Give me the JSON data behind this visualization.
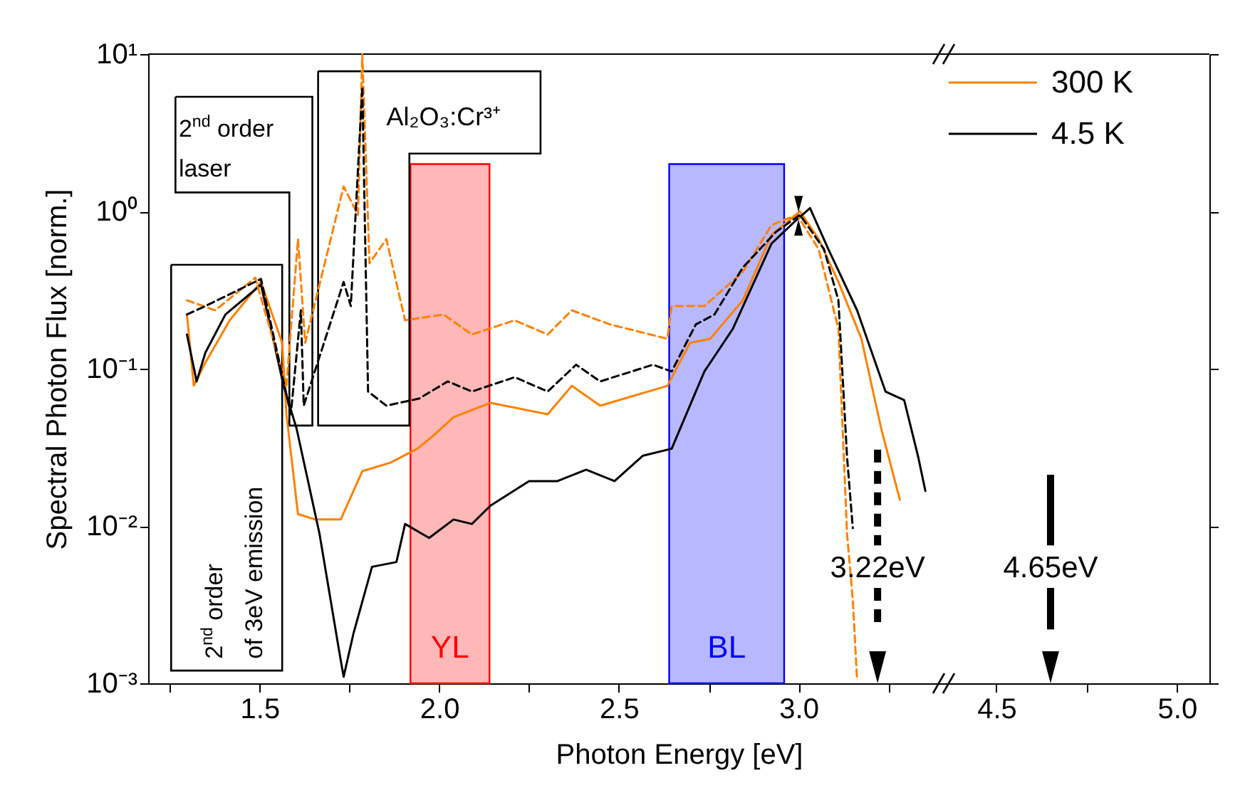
{
  "chart_data": [
    {
      "type": "line",
      "xlabel": "Photon Energy [eV]",
      "ylabel": "Spectral Photon Flux [norm.]",
      "log": true,
      "legend": "top right",
      "xlim": [
        1.19,
        3.41
      ],
      "ylim": [
        0.001,
        10
      ],
      "xticks": [
        {
          "value": 1.25,
          "label": null
        },
        1.5,
        {
          "value": 1.75,
          "label": null
        },
        {
          "value": 2,
          "label": "2.0"
        },
        {
          "value": 2.25,
          "label": null
        },
        2.5,
        {
          "value": 2.75,
          "label": null
        },
        {
          "value": 3,
          "label": "3.0"
        },
        {
          "value": 3.25,
          "label": null
        }
      ],
      "yticks": [
        {
          "value": 0.001,
          "label": "10⁻³"
        },
        {
          "value": 0.01,
          "label": "10⁻²"
        },
        {
          "value": 0.1,
          "label": "10⁻¹"
        },
        {
          "value": 1,
          "label": "10⁰"
        },
        {
          "value": 10,
          "label": "10¹"
        }
      ],
      "series": [
        {
          "name": "300 K",
          "color": "#ff8000",
          "line_style": "solid",
          "x": [
            1.298,
            1.317,
            1.349,
            1.417,
            1.504,
            1.563,
            1.575,
            1.607,
            1.655,
            1.726,
            1.786,
            1.865,
            1.94,
            1.984,
            2.04,
            2.143,
            2.302,
            2.369,
            2.448,
            2.635,
            2.698,
            2.754,
            2.845,
            2.925,
            3.004,
            3.056,
            3.111,
            3.175,
            3.23,
            3.282
          ],
          "values": [
            0.221,
            0.078,
            0.109,
            0.203,
            0.356,
            0.146,
            0.051,
            0.0119,
            0.011,
            0.011,
            0.0223,
            0.0253,
            0.0311,
            0.0376,
            0.0492,
            0.0607,
            0.0513,
            0.0778,
            0.0582,
            0.0778,
            0.146,
            0.155,
            0.272,
            0.71,
            1.0,
            0.667,
            0.356,
            0.155,
            0.0417,
            0.0147
          ]
        },
        {
          "name": "4.5 K",
          "color": "#000000",
          "line_style": "solid",
          "x": [
            1.298,
            1.325,
            1.349,
            1.405,
            1.504,
            1.567,
            1.603,
            1.667,
            1.722,
            1.734,
            1.762,
            1.813,
            1.881,
            1.905,
            1.972,
            2.04,
            2.091,
            2.143,
            2.25,
            2.329,
            2.409,
            2.488,
            2.567,
            2.647,
            2.687,
            2.738,
            2.817,
            2.925,
            2.992,
            3.032,
            3.083,
            3.163,
            3.242,
            3.294,
            3.333,
            3.353
          ],
          "values": [
            0.165,
            0.083,
            0.126,
            0.221,
            0.342,
            0.078,
            0.0417,
            0.0089,
            0.00158,
            0.0011,
            0.0021,
            0.0055,
            0.0059,
            0.0103,
            0.0084,
            0.011,
            0.0103,
            0.0135,
            0.0193,
            0.0193,
            0.0228,
            0.0193,
            0.028,
            0.031,
            0.051,
            0.096,
            0.179,
            0.625,
            0.873,
            1.05,
            0.575,
            0.235,
            0.0716,
            0.0632,
            0.0275,
            0.0167
          ]
        },
        {
          "color": "#ff8000",
          "line_style": "dashed",
          "x": [
            1.298,
            1.377,
            1.488,
            1.575,
            1.607,
            1.627,
            1.734,
            1.774,
            1.786,
            1.806,
            1.853,
            1.905,
            2.012,
            2.091,
            2.21,
            2.302,
            2.369,
            2.476,
            2.635,
            2.647,
            2.738,
            2.845,
            2.925,
            2.996,
            3.056,
            3.111,
            3.135,
            3.151,
            3.163
          ],
          "values": [
            0.272,
            0.235,
            0.379,
            0.078,
            0.667,
            0.146,
            1.44,
            0.95,
            10,
            0.468,
            0.667,
            0.203,
            0.221,
            0.165,
            0.203,
            0.165,
            0.235,
            0.191,
            0.155,
            0.25,
            0.25,
            0.412,
            0.82,
            0.95,
            0.575,
            0.179,
            0.0089,
            0.0034,
            0.00104
          ]
        },
        {
          "color": "#000000",
          "line_style": "dashed",
          "x": [
            1.298,
            1.349,
            1.504,
            1.587,
            1.615,
            1.623,
            1.734,
            1.754,
            1.786,
            1.802,
            1.853,
            1.944,
            2.024,
            2.091,
            2.21,
            2.302,
            2.381,
            2.448,
            2.595,
            2.647,
            2.714,
            2.766,
            2.845,
            2.937,
            3.004,
            3.071,
            3.111,
            3.135,
            3.151
          ],
          "values": [
            0.221,
            0.25,
            0.372,
            0.0513,
            0.235,
            0.0582,
            0.356,
            0.25,
            6.2,
            0.0716,
            0.0582,
            0.0646,
            0.083,
            0.0716,
            0.0883,
            0.0716,
            0.106,
            0.083,
            0.106,
            0.096,
            0.191,
            0.221,
            0.44,
            0.74,
            0.95,
            0.575,
            0.272,
            0.0275,
            0.0097
          ]
        }
      ],
      "bands": [
        {
          "axis": "x",
          "from": 1.92,
          "to": 2.14,
          "label": "YL",
          "color": "#ff0000"
        },
        {
          "axis": "x",
          "from": 2.64,
          "to": 2.96,
          "label": "BL",
          "color": "#0000ff"
        }
      ],
      "ref_lines": [
        {
          "axis": "x",
          "value": 3.22,
          "label": "3.22eV",
          "color": "#000000",
          "line_style": "dashed"
        }
      ],
      "annotations": [
        "2$^{nd}$ order\nlaser",
        "Al₂O₃:Cr³⁺",
        "2$^{nd}$ order\nof 3eV emission"
      ]
    },
    {
      "type": "line",
      "tick_labels": "x",
      "xlim": [
        4.36,
        5.09
      ],
      "ylim": [
        0.001,
        10
      ],
      "log": true,
      "xticks": [
        4.5,
        {
          "value": 4.75,
          "label": null
        },
        {
          "value": 5,
          "label": "5.0"
        }
      ],
      "yticks": [
        0.001,
        0.01,
        0.1,
        1,
        10
      ],
      "ref_lines": [
        {
          "axis": "x",
          "value": 4.65,
          "label": "4.65eV",
          "color": "#000000",
          "line_style": "solid"
        }
      ]
    }
  ]
}
